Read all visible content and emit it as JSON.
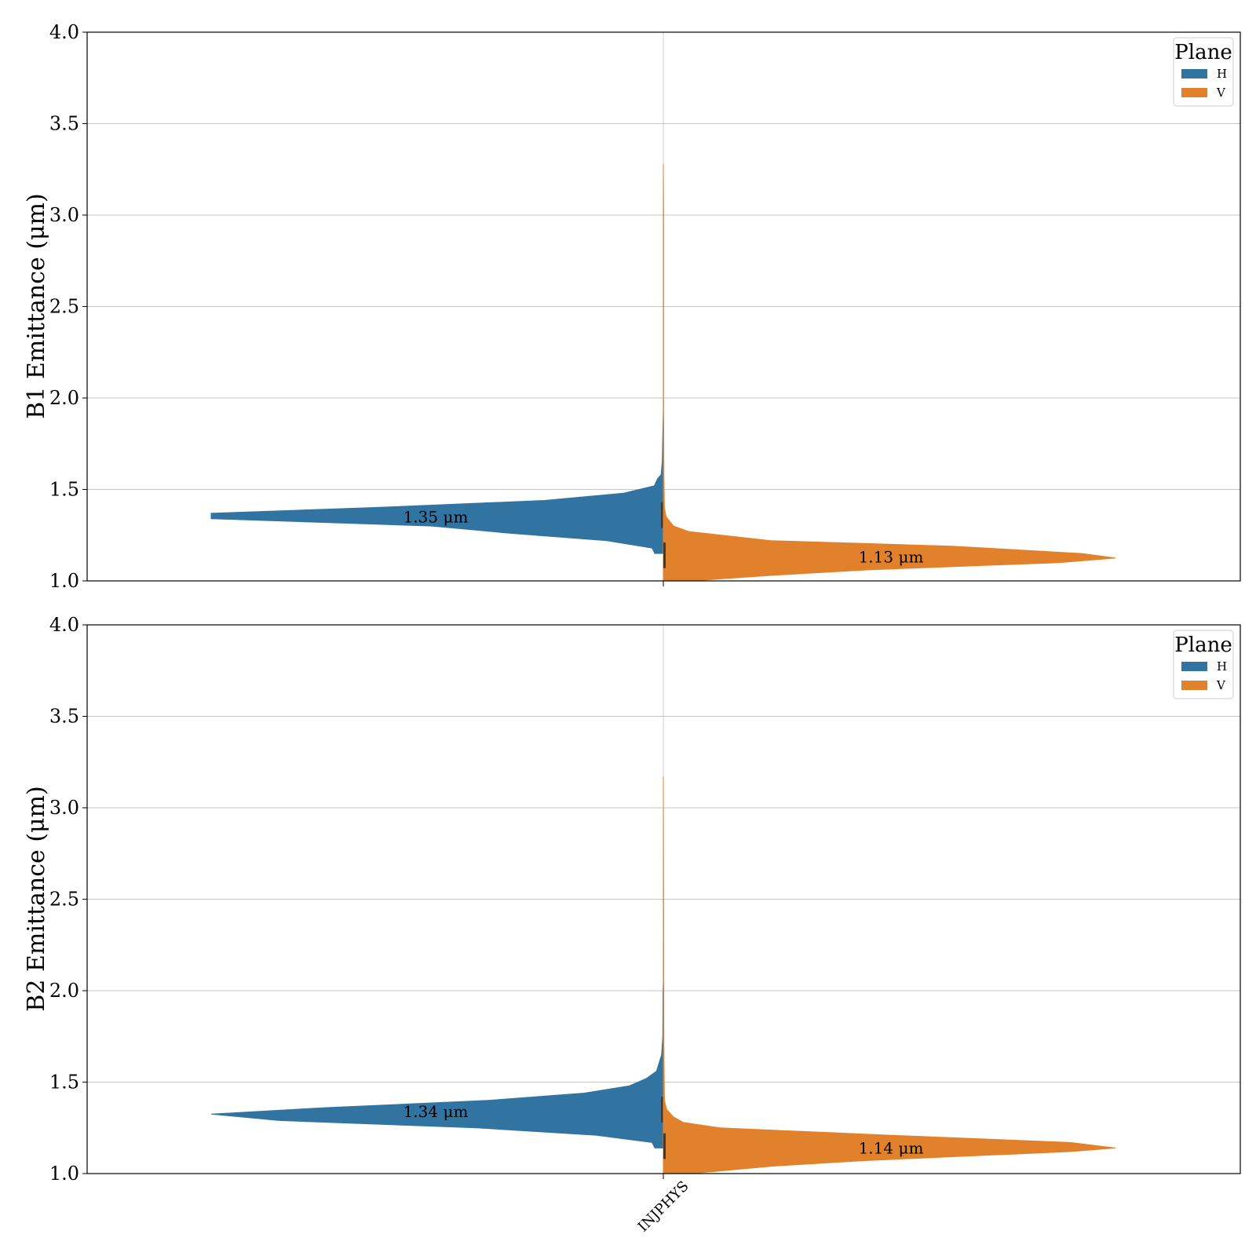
{
  "chart_data": [
    {
      "type": "violin",
      "split": true,
      "ylabel": "B1 Emittance (μm)",
      "ylim": [
        1.0,
        4.0
      ],
      "yticks": [
        "1.0",
        "1.5",
        "2.0",
        "2.5",
        "3.0",
        "3.5",
        "4.0"
      ],
      "categories": [
        "INJPHYS"
      ],
      "grid": true,
      "legend": {
        "title": "Plane",
        "placement": "top-right",
        "entries": [
          "H",
          "V"
        ]
      },
      "series": [
        {
          "name": "H",
          "color": "#3274a1",
          "median": 1.35,
          "annotation": "1.35 μm",
          "density": [
            [
              1.15,
              0.015
            ],
            [
              1.18,
              0.02
            ],
            [
              1.22,
              0.1
            ],
            [
              1.26,
              0.27
            ],
            [
              1.3,
              0.41
            ],
            [
              1.34,
              0.8
            ],
            [
              1.37,
              0.8
            ],
            [
              1.4,
              0.52
            ],
            [
              1.44,
              0.21
            ],
            [
              1.48,
              0.07
            ],
            [
              1.52,
              0.016
            ],
            [
              1.56,
              0.01
            ],
            [
              1.58,
              0.004
            ],
            [
              1.65,
              0.002
            ],
            [
              1.8,
              0.001
            ],
            [
              1.93,
              0.0
            ]
          ]
        },
        {
          "name": "V",
          "color": "#e1812c",
          "median": 1.13,
          "annotation": "1.13 μm",
          "density": [
            [
              1.0,
              0.05
            ],
            [
              1.03,
              0.19
            ],
            [
              1.06,
              0.36
            ],
            [
              1.1,
              0.7
            ],
            [
              1.125,
              0.8
            ],
            [
              1.15,
              0.74
            ],
            [
              1.19,
              0.51
            ],
            [
              1.22,
              0.19
            ],
            [
              1.27,
              0.045
            ],
            [
              1.3,
              0.018
            ],
            [
              1.35,
              0.005
            ],
            [
              1.4,
              0.002
            ],
            [
              1.6,
              0.001
            ],
            [
              2.0,
              0.0005
            ],
            [
              3.0,
              0.0005
            ],
            [
              3.28,
              0.0
            ]
          ]
        }
      ]
    },
    {
      "type": "violin",
      "split": true,
      "ylabel": "B2 Emittance (μm)",
      "ylim": [
        1.0,
        4.0
      ],
      "yticks": [
        "1.0",
        "1.5",
        "2.0",
        "2.5",
        "3.0",
        "3.5",
        "4.0"
      ],
      "categories": [
        "INJPHYS"
      ],
      "grid": true,
      "legend": {
        "title": "Plane",
        "placement": "top-right",
        "entries": [
          "H",
          "V"
        ]
      },
      "series": [
        {
          "name": "H",
          "color": "#3274a1",
          "median": 1.34,
          "annotation": "1.34 μm",
          "density": [
            [
              1.14,
              0.015
            ],
            [
              1.17,
              0.02
            ],
            [
              1.21,
              0.12
            ],
            [
              1.25,
              0.33
            ],
            [
              1.29,
              0.68
            ],
            [
              1.325,
              0.8
            ],
            [
              1.36,
              0.6
            ],
            [
              1.4,
              0.31
            ],
            [
              1.44,
              0.14
            ],
            [
              1.48,
              0.06
            ],
            [
              1.52,
              0.03
            ],
            [
              1.56,
              0.012
            ],
            [
              1.65,
              0.003
            ],
            [
              1.75,
              0.001
            ],
            [
              2.0,
              0.0005
            ],
            [
              2.05,
              0.0
            ]
          ]
        },
        {
          "name": "V",
          "color": "#e1812c",
          "median": 1.14,
          "annotation": "1.14 μm",
          "density": [
            [
              1.0,
              0.05
            ],
            [
              1.04,
              0.19
            ],
            [
              1.07,
              0.35
            ],
            [
              1.12,
              0.72
            ],
            [
              1.14,
              0.8
            ],
            [
              1.17,
              0.72
            ],
            [
              1.21,
              0.4
            ],
            [
              1.25,
              0.1
            ],
            [
              1.28,
              0.035
            ],
            [
              1.31,
              0.018
            ],
            [
              1.35,
              0.006
            ],
            [
              1.4,
              0.002
            ],
            [
              1.7,
              0.001
            ],
            [
              2.5,
              0.0005
            ],
            [
              3.17,
              0.0
            ]
          ]
        }
      ]
    }
  ]
}
